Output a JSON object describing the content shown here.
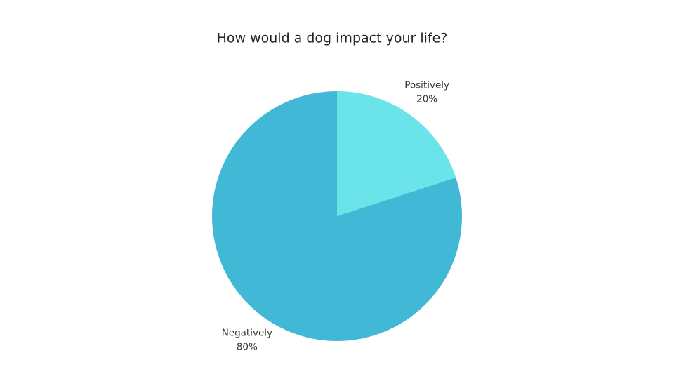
{
  "chart_data": {
    "type": "pie",
    "title": "How would a dog impact your life?",
    "categories": [
      "Positively",
      "Negatively"
    ],
    "values": [
      20,
      80
    ],
    "value_labels": [
      "20%",
      "80%"
    ],
    "colors": [
      "#6ae4e9",
      "#42b8d7"
    ]
  }
}
